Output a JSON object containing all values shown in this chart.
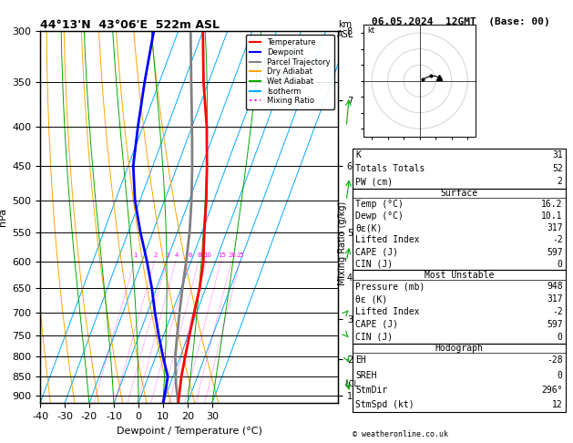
{
  "title_left": "44°13'N  43°06'E  522m ASL",
  "title_right": "06.05.2024  12GMT  (Base: 00)",
  "xlabel": "Dewpoint / Temperature (°C)",
  "ylabel_left": "hPa",
  "ylabel_mix": "Mixing Ratio (g/kg)",
  "pressure_levels": [
    300,
    350,
    400,
    450,
    500,
    550,
    600,
    650,
    700,
    750,
    800,
    850,
    900
  ],
  "isotherm_temps": [
    -40,
    -30,
    -20,
    -10,
    0,
    10,
    20,
    30
  ],
  "dryadiabat_temps": [
    -40,
    -30,
    -20,
    -10,
    0,
    10,
    20,
    30,
    40
  ],
  "wetadiabat_temps": [
    -20,
    -10,
    0,
    10,
    20,
    30
  ],
  "mixing_ratios": [
    1,
    2,
    3,
    4,
    6,
    8,
    10,
    15,
    20,
    25
  ],
  "km_ticks": {
    "8": 300,
    "7": 370,
    "6": 450,
    "5": 550,
    "4": 630,
    "3": 715,
    "2": 805,
    "1": 900
  },
  "lcl_pressure": 870,
  "skew": 0.75,
  "xmin": -40,
  "xmax": 35,
  "pmin": 300,
  "pmax": 920,
  "colors": {
    "temp": "#ff0000",
    "dewp": "#0000ff",
    "parcel": "#808080",
    "dryadiabat": "#ffa500",
    "wetadiabat": "#00aa00",
    "isotherm": "#00aaff",
    "mixing": "#ff00ff",
    "background": "#ffffff",
    "grid": "#000000"
  },
  "temp_p": [
    920,
    850,
    800,
    750,
    700,
    650,
    600,
    575,
    550,
    500,
    450,
    400,
    350,
    300
  ],
  "temp_T": [
    16.2,
    13.5,
    12.0,
    10.5,
    9.0,
    7.5,
    5.0,
    3.0,
    1.0,
    -3.0,
    -8.0,
    -14.0,
    -22.0,
    -30.0
  ],
  "dewp_p": [
    920,
    850,
    800,
    750,
    700,
    650,
    600,
    550,
    500,
    450,
    400,
    350,
    300
  ],
  "dewp_T": [
    10.1,
    8.0,
    3.0,
    -2.0,
    -7.0,
    -12.0,
    -18.0,
    -25.0,
    -32.0,
    -38.0,
    -42.0,
    -46.0,
    -50.0
  ],
  "parcel_p": [
    920,
    870,
    800,
    750,
    700,
    650,
    600,
    550,
    500,
    450,
    400,
    350,
    300
  ],
  "parcel_T": [
    16.2,
    12.5,
    8.0,
    5.5,
    3.0,
    0.5,
    -2.0,
    -5.0,
    -9.0,
    -14.0,
    -20.0,
    -27.0,
    -35.0
  ],
  "legend_entries": [
    [
      "Temperature",
      "#ff0000",
      "solid"
    ],
    [
      "Dewpoint",
      "#0000ff",
      "solid"
    ],
    [
      "Parcel Trajectory",
      "#808080",
      "solid"
    ],
    [
      "Dry Adiabat",
      "#ffa500",
      "solid"
    ],
    [
      "Wet Adiabat",
      "#00aa00",
      "solid"
    ],
    [
      "Isotherm",
      "#00aaff",
      "solid"
    ],
    [
      "Mixing Ratio",
      "#ff00ff",
      "dotted"
    ]
  ],
  "stats": {
    "K": 31,
    "Totals_Totals": 52,
    "PW_cm": 2,
    "Surf_Temp": 16.2,
    "Surf_Dewp": 10.1,
    "Surf_thetae": 317,
    "Surf_LI": -2,
    "Surf_CAPE": 597,
    "Surf_CIN": 0,
    "MU_Pressure": 948,
    "MU_thetae": 317,
    "MU_LI": -2,
    "MU_CAPE": 597,
    "MU_CIN": 0,
    "EH": -28,
    "SREH": 0,
    "StmDir": 296,
    "StmSpd": 12
  },
  "copyright": "© weatheronline.co.uk"
}
